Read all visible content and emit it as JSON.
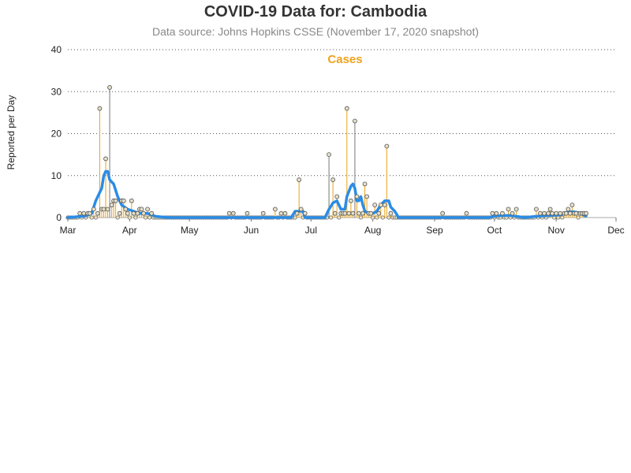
{
  "header": {
    "title": "COVID-19 Data for: Cambodia",
    "subtitle": "Data source: Johns Hopkins CSSE (November 17, 2020 snapshot)"
  },
  "colors": {
    "bar": "#e8a317",
    "bar_alt": "#777777",
    "marker_fill": "#e6e0c8",
    "marker_stroke": "#555555",
    "avg_line": "#2a8ce6",
    "legend": "#f0a21e",
    "grid": "#555555"
  },
  "chart_data": {
    "type": "bar",
    "title": "COVID-19 Data for: Cambodia",
    "subtitle": "Data source: Johns Hopkins CSSE (November 17, 2020 snapshot)",
    "legend_label": "Cases",
    "ylabel": "Reported per Day",
    "xlabel": "",
    "ylim": [
      0,
      40
    ],
    "y_ticks": [
      0,
      10,
      20,
      30,
      40
    ],
    "grid": "horizontal dotted",
    "legend_position": "top-center",
    "x_range": [
      "2020-03-01",
      "2020-12-01"
    ],
    "x_tick_labels": [
      "Mar",
      "Apr",
      "May",
      "Jun",
      "Jul",
      "Aug",
      "Sep",
      "Oct",
      "Nov",
      "Dec"
    ],
    "x_ticks": [
      "2020-03-01",
      "2020-04-01",
      "2020-05-01",
      "2020-06-01",
      "2020-07-01",
      "2020-08-01",
      "2020-09-01",
      "2020-10-01",
      "2020-11-01",
      "2020-12-01"
    ],
    "series": [
      {
        "name": "Cases",
        "style": "needle",
        "points": [
          [
            "2020-03-07",
            1
          ],
          [
            "2020-03-09",
            1
          ],
          [
            "2020-03-11",
            1
          ],
          [
            "2020-03-12",
            1
          ],
          [
            "2020-03-14",
            2
          ],
          [
            "2020-03-16",
            1
          ],
          [
            "2020-03-17",
            26
          ],
          [
            "2020-03-18",
            2
          ],
          [
            "2020-03-19",
            2
          ],
          [
            "2020-03-20",
            14
          ],
          [
            "2020-03-21",
            2
          ],
          [
            "2020-03-22",
            31
          ],
          [
            "2020-03-23",
            3
          ],
          [
            "2020-03-24",
            4
          ],
          [
            "2020-03-25",
            4
          ],
          [
            "2020-03-27",
            1
          ],
          [
            "2020-03-28",
            4
          ],
          [
            "2020-03-29",
            4
          ],
          [
            "2020-03-30",
            2
          ],
          [
            "2020-03-31",
            1
          ],
          [
            "2020-04-02",
            4
          ],
          [
            "2020-04-03",
            1
          ],
          [
            "2020-04-05",
            1
          ],
          [
            "2020-04-06",
            2
          ],
          [
            "2020-04-07",
            2
          ],
          [
            "2020-04-08",
            1
          ],
          [
            "2020-04-10",
            2
          ],
          [
            "2020-04-12",
            1
          ],
          [
            "2020-05-21",
            1
          ],
          [
            "2020-05-23",
            1
          ],
          [
            "2020-05-30",
            1
          ],
          [
            "2020-06-07",
            1
          ],
          [
            "2020-06-13",
            2
          ],
          [
            "2020-06-16",
            1
          ],
          [
            "2020-06-18",
            1
          ],
          [
            "2020-06-24",
            1
          ],
          [
            "2020-06-25",
            9
          ],
          [
            "2020-06-26",
            2
          ],
          [
            "2020-06-28",
            1
          ],
          [
            "2020-07-10",
            15
          ],
          [
            "2020-07-12",
            9
          ],
          [
            "2020-07-13",
            1
          ],
          [
            "2020-07-14",
            5
          ],
          [
            "2020-07-16",
            1
          ],
          [
            "2020-07-17",
            1
          ],
          [
            "2020-07-18",
            1
          ],
          [
            "2020-07-19",
            26
          ],
          [
            "2020-07-20",
            1
          ],
          [
            "2020-07-21",
            4
          ],
          [
            "2020-07-22",
            1
          ],
          [
            "2020-07-23",
            23
          ],
          [
            "2020-07-24",
            5
          ],
          [
            "2020-07-25",
            1
          ],
          [
            "2020-07-27",
            1
          ],
          [
            "2020-07-28",
            8
          ],
          [
            "2020-07-29",
            5
          ],
          [
            "2020-07-30",
            1
          ],
          [
            "2020-07-31",
            1
          ],
          [
            "2020-08-02",
            3
          ],
          [
            "2020-08-04",
            1
          ],
          [
            "2020-08-05",
            3
          ],
          [
            "2020-08-07",
            3
          ],
          [
            "2020-08-08",
            17
          ],
          [
            "2020-08-10",
            1
          ],
          [
            "2020-09-05",
            1
          ],
          [
            "2020-09-17",
            1
          ],
          [
            "2020-09-30",
            1
          ],
          [
            "2020-10-02",
            1
          ],
          [
            "2020-10-05",
            1
          ],
          [
            "2020-10-08",
            2
          ],
          [
            "2020-10-10",
            1
          ],
          [
            "2020-10-12",
            2
          ],
          [
            "2020-10-22",
            2
          ],
          [
            "2020-10-24",
            1
          ],
          [
            "2020-10-26",
            1
          ],
          [
            "2020-10-28",
            1
          ],
          [
            "2020-10-29",
            2
          ],
          [
            "2020-10-30",
            1
          ],
          [
            "2020-11-01",
            1
          ],
          [
            "2020-11-03",
            1
          ],
          [
            "2020-11-05",
            1
          ],
          [
            "2020-11-06",
            1
          ],
          [
            "2020-11-07",
            2
          ],
          [
            "2020-11-08",
            1
          ],
          [
            "2020-11-09",
            3
          ],
          [
            "2020-11-10",
            1
          ],
          [
            "2020-11-11",
            1
          ],
          [
            "2020-11-13",
            1
          ],
          [
            "2020-11-14",
            1
          ],
          [
            "2020-11-15",
            1
          ],
          [
            "2020-11-16",
            1
          ]
        ],
        "gray_points": [
          "2020-03-22",
          "2020-07-10",
          "2020-07-23"
        ]
      },
      {
        "style": "line",
        "points": [
          [
            "2020-03-01",
            0
          ],
          [
            "2020-03-10",
            0.4
          ],
          [
            "2020-03-13",
            1
          ],
          [
            "2020-03-15",
            4
          ],
          [
            "2020-03-17",
            6
          ],
          [
            "2020-03-18",
            7
          ],
          [
            "2020-03-19",
            10
          ],
          [
            "2020-03-20",
            11
          ],
          [
            "2020-03-21",
            11
          ],
          [
            "2020-03-22",
            9
          ],
          [
            "2020-03-24",
            8
          ],
          [
            "2020-03-26",
            5
          ],
          [
            "2020-03-28",
            3
          ],
          [
            "2020-03-31",
            2
          ],
          [
            "2020-04-03",
            1.5
          ],
          [
            "2020-04-06",
            1
          ],
          [
            "2020-04-10",
            1
          ],
          [
            "2020-04-14",
            0.3
          ],
          [
            "2020-04-20",
            0
          ],
          [
            "2020-06-21",
            0
          ],
          [
            "2020-06-23",
            1.5
          ],
          [
            "2020-06-27",
            1.5
          ],
          [
            "2020-06-28",
            0
          ],
          [
            "2020-07-08",
            0
          ],
          [
            "2020-07-10",
            2
          ],
          [
            "2020-07-12",
            3.5
          ],
          [
            "2020-07-14",
            4
          ],
          [
            "2020-07-16",
            2
          ],
          [
            "2020-07-18",
            2
          ],
          [
            "2020-07-19",
            5
          ],
          [
            "2020-07-21",
            7.5
          ],
          [
            "2020-07-22",
            8
          ],
          [
            "2020-07-23",
            7
          ],
          [
            "2020-07-24",
            4
          ],
          [
            "2020-07-25",
            4
          ],
          [
            "2020-07-26",
            5
          ],
          [
            "2020-07-27",
            3
          ],
          [
            "2020-07-28",
            1.5
          ],
          [
            "2020-07-30",
            1
          ],
          [
            "2020-08-01",
            1
          ],
          [
            "2020-08-03",
            1.5
          ],
          [
            "2020-08-05",
            3
          ],
          [
            "2020-08-07",
            4
          ],
          [
            "2020-08-09",
            4
          ],
          [
            "2020-08-10",
            2.5
          ],
          [
            "2020-08-12",
            1.5
          ],
          [
            "2020-08-14",
            0
          ],
          [
            "2020-09-28",
            0
          ],
          [
            "2020-10-02",
            0.4
          ],
          [
            "2020-10-08",
            0.5
          ],
          [
            "2020-10-12",
            0.3
          ],
          [
            "2020-10-16",
            0
          ],
          [
            "2020-10-22",
            0.3
          ],
          [
            "2020-10-30",
            0.5
          ],
          [
            "2020-11-03",
            0.6
          ],
          [
            "2020-11-06",
            1.2
          ],
          [
            "2020-11-09",
            1.4
          ],
          [
            "2020-11-12",
            1.2
          ],
          [
            "2020-11-15",
            0.5
          ],
          [
            "2020-11-16",
            0.4
          ]
        ]
      }
    ]
  }
}
